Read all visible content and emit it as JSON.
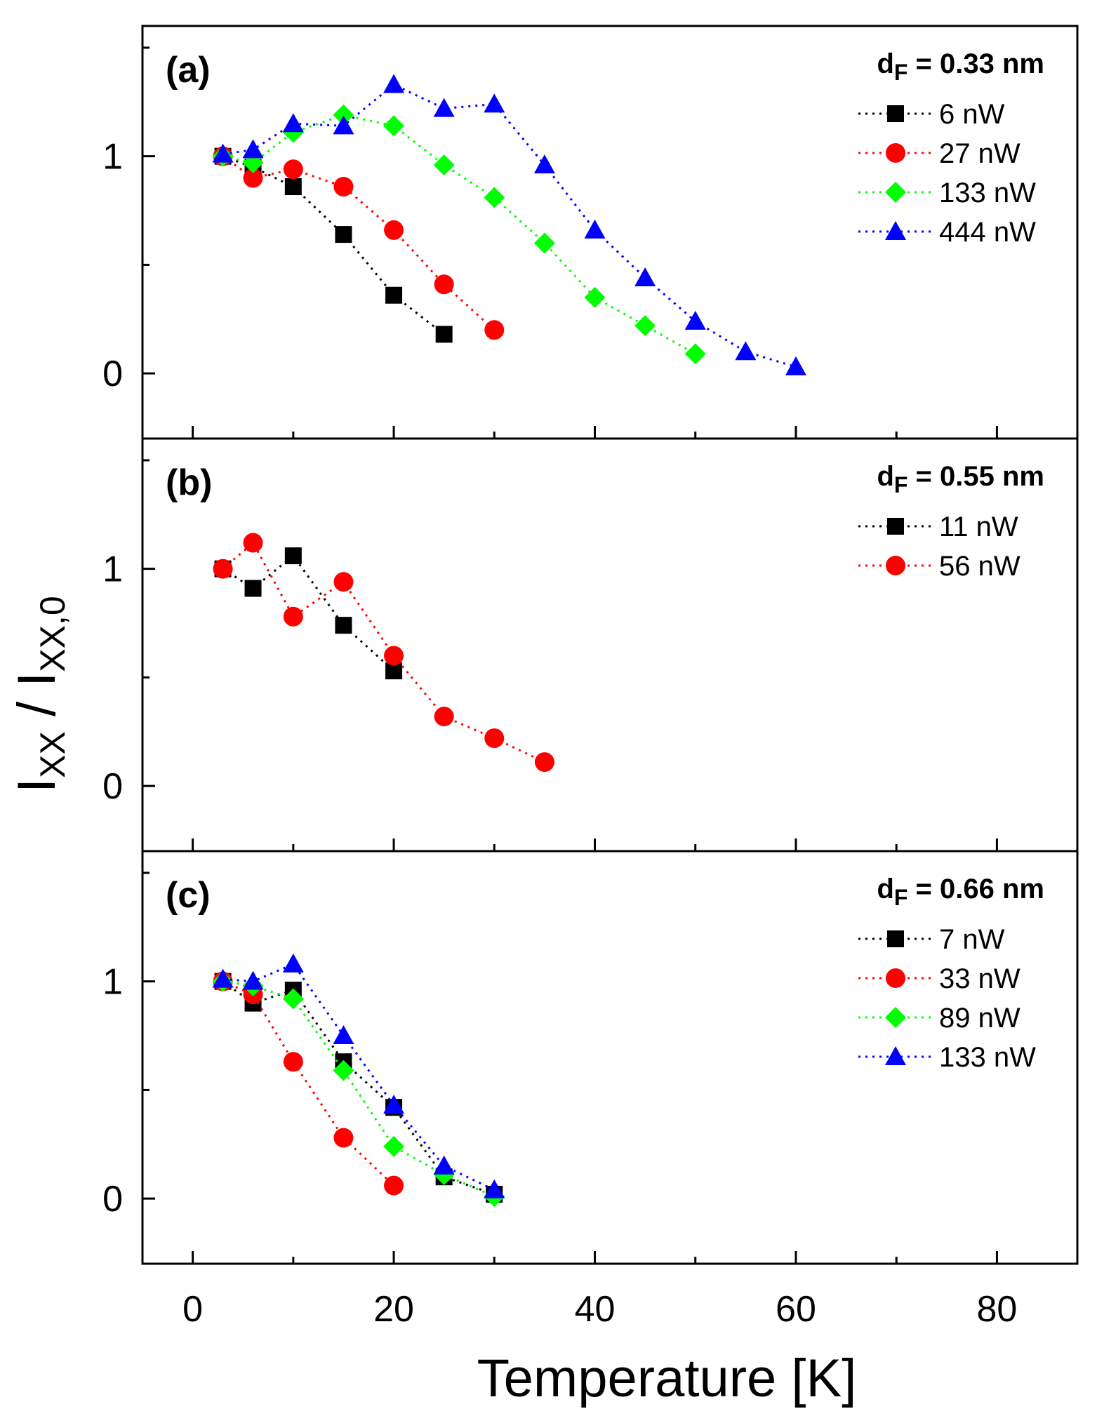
{
  "figure": {
    "xlabel": "Temperature [K]",
    "ylabel": "I",
    "ylabel_sub": "XX",
    "ylabel_sep": " / I",
    "ylabel_sub2": "XX,0",
    "x_ticks": [
      "0",
      "20",
      "40",
      "60",
      "80"
    ],
    "y_ticks": [
      "0",
      "1"
    ]
  },
  "chart_data": [
    {
      "type": "scatter",
      "panel": "(a)",
      "param_main": "d",
      "param_sub": "F",
      "param_rest": " = 0.33 nm",
      "xlim": [
        -5,
        88
      ],
      "ylim": [
        -0.3,
        1.6
      ],
      "xlabel": "Temperature [K]",
      "legend_position": "top-right",
      "series": [
        {
          "name": "6 nW",
          "color": "#000000",
          "marker": "square",
          "x": [
            3,
            6,
            10,
            15,
            20,
            25
          ],
          "y": [
            1.0,
            0.95,
            0.86,
            0.64,
            0.36,
            0.18
          ]
        },
        {
          "name": "27 nW",
          "color": "#ff0000",
          "marker": "circle",
          "x": [
            3,
            6,
            10,
            15,
            20,
            25,
            30
          ],
          "y": [
            1.0,
            0.9,
            0.94,
            0.86,
            0.66,
            0.41,
            0.2
          ]
        },
        {
          "name": "133 nW",
          "color": "#00ff00",
          "marker": "diamond",
          "x": [
            3,
            6,
            10,
            15,
            20,
            25,
            30,
            35,
            40,
            45,
            50
          ],
          "y": [
            1.0,
            0.97,
            1.11,
            1.19,
            1.14,
            0.96,
            0.81,
            0.6,
            0.35,
            0.22,
            0.09
          ]
        },
        {
          "name": "444 nW",
          "color": "#0000ff",
          "marker": "triangle",
          "x": [
            3,
            6,
            10,
            15,
            20,
            25,
            30,
            35,
            40,
            45,
            50,
            55,
            60
          ],
          "y": [
            1.01,
            1.03,
            1.15,
            1.14,
            1.33,
            1.22,
            1.24,
            0.96,
            0.66,
            0.44,
            0.24,
            0.1,
            0.03
          ]
        }
      ]
    },
    {
      "type": "scatter",
      "panel": "(b)",
      "param_main": "d",
      "param_sub": "F",
      "param_rest": " = 0.55 nm",
      "xlim": [
        -5,
        88
      ],
      "ylim": [
        -0.3,
        1.6
      ],
      "xlabel": "Temperature [K]",
      "legend_position": "top-right",
      "series": [
        {
          "name": "11 nW",
          "color": "#000000",
          "marker": "square",
          "x": [
            3,
            6,
            10,
            15,
            20
          ],
          "y": [
            1.0,
            0.91,
            1.06,
            0.74,
            0.53
          ]
        },
        {
          "name": "56 nW",
          "color": "#ff0000",
          "marker": "circle",
          "x": [
            3,
            6,
            10,
            15,
            20,
            25,
            30,
            35
          ],
          "y": [
            1.0,
            1.12,
            0.78,
            0.94,
            0.6,
            0.32,
            0.22,
            0.11
          ]
        }
      ]
    },
    {
      "type": "scatter",
      "panel": "(c)",
      "param_main": "d",
      "param_sub": "F",
      "param_rest": " = 0.66 nm",
      "xlim": [
        -5,
        88
      ],
      "ylim": [
        -0.3,
        1.6
      ],
      "xlabel": "Temperature [K]",
      "legend_position": "top-right",
      "series": [
        {
          "name": "7 nW",
          "color": "#000000",
          "marker": "square",
          "x": [
            3,
            6,
            10,
            15,
            20,
            25,
            30
          ],
          "y": [
            1.0,
            0.9,
            0.96,
            0.63,
            0.42,
            0.1,
            0.02
          ]
        },
        {
          "name": "33 nW",
          "color": "#ff0000",
          "marker": "circle",
          "x": [
            3,
            6,
            10,
            15,
            20
          ],
          "y": [
            1.0,
            0.94,
            0.63,
            0.28,
            0.06
          ]
        },
        {
          "name": "89 nW",
          "color": "#00ff00",
          "marker": "diamond",
          "x": [
            3,
            6,
            10,
            15,
            20,
            25,
            30
          ],
          "y": [
            1.0,
            0.98,
            0.92,
            0.59,
            0.24,
            0.11,
            0.01
          ]
        },
        {
          "name": "133 nW",
          "color": "#0000ff",
          "marker": "triangle",
          "x": [
            3,
            6,
            10,
            15,
            20,
            25,
            30
          ],
          "y": [
            1.01,
            1.0,
            1.08,
            0.75,
            0.43,
            0.15,
            0.04
          ]
        }
      ]
    }
  ]
}
